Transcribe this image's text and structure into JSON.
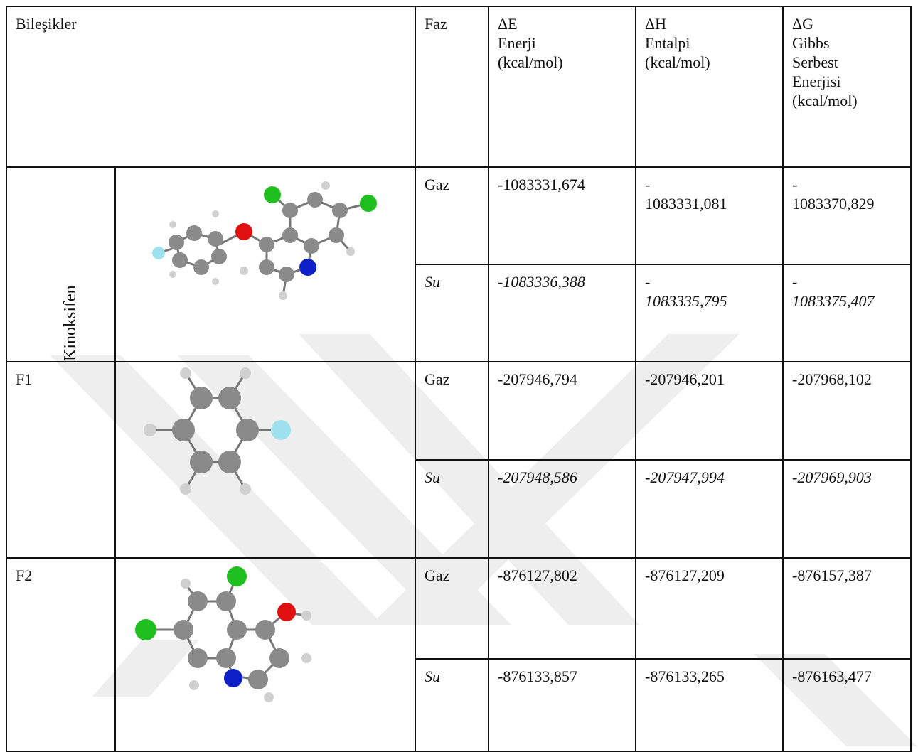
{
  "table": {
    "header": {
      "compounds": "Bileşikler",
      "phase": "Faz",
      "dE": [
        "ΔE",
        "Enerji",
        "(kcal/mol)"
      ],
      "dH": [
        "ΔH",
        "Entalpi",
        "(kcal/mol)"
      ],
      "dG": [
        "ΔG",
        "Gibbs",
        "Serbest",
        "Enerjisi",
        "(kcal/mol)"
      ]
    },
    "rows": [
      {
        "compound": "Kinoksifen",
        "gas": {
          "phase": "Gaz",
          "dE": "-1083331,674",
          "dH_sign": "-",
          "dH": "1083331,081",
          "dG_sign": "-",
          "dG": "1083370,829"
        },
        "water": {
          "phase": "Su",
          "dE": "-1083336,388",
          "dH_sign": "-",
          "dH": "1083335,795",
          "dG_sign": "-",
          "dG": "1083375,407"
        }
      },
      {
        "compound": "F1",
        "gas": {
          "phase": "Gaz",
          "dE": "-207946,794",
          "dH": "-207946,201",
          "dG": "-207968,102"
        },
        "water": {
          "phase": "Su",
          "dE": "-207948,586",
          "dH": "-207947,994",
          "dG": "-207969,903"
        }
      },
      {
        "compound": "F2",
        "gas": {
          "phase": "Gaz",
          "dE": "-876127,802",
          "dH": "-876127,209",
          "dG": "-876157,387"
        },
        "water": {
          "phase": "Su",
          "dE": "-876133,857",
          "dH": "-876133,265",
          "dG": "-876163,477"
        }
      }
    ]
  },
  "colors": {
    "carbon": "#8a8a8a",
    "hydrogen": "#d0d0d0",
    "chlorine": "#1fbf1f",
    "oxygen": "#e01010",
    "nitrogen": "#1020c8",
    "fluorine": "#9fe2ef",
    "watermark": "#ececec"
  }
}
